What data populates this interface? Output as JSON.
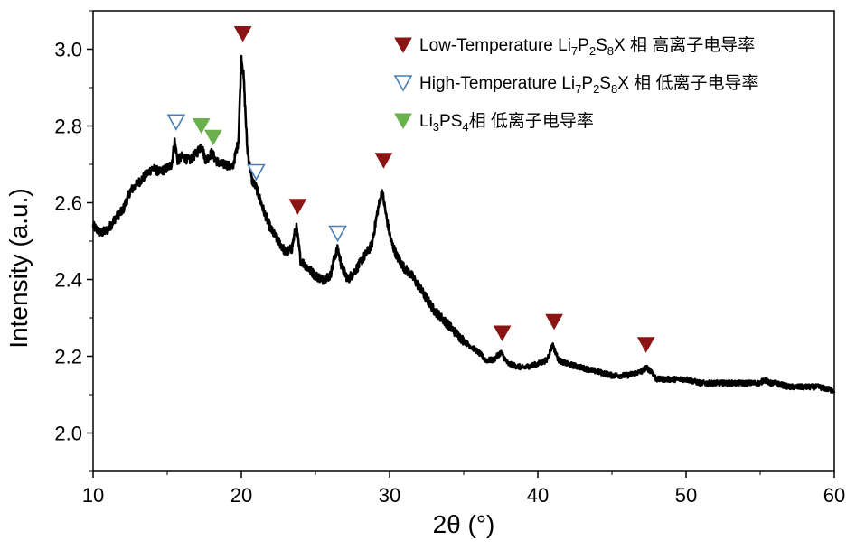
{
  "chart_data": {
    "type": "line",
    "title": "",
    "xlabel": "2θ (°)",
    "ylabel": "Intensity (a.u.)",
    "xlim": [
      10,
      60
    ],
    "ylim": [
      1.9,
      3.1
    ],
    "xticks": [
      10,
      20,
      30,
      40,
      50,
      60
    ],
    "yticks": [
      2.0,
      2.2,
      2.4,
      2.6,
      2.8,
      3.0
    ],
    "x_tick_labels": [
      "10",
      "20",
      "30",
      "40",
      "50",
      "60"
    ],
    "y_tick_labels": [
      "2.0",
      "2.2",
      "2.4",
      "2.6",
      "2.8",
      "3.0"
    ],
    "grid": false,
    "legend_position": "top-right",
    "colors": {
      "line": "#000000",
      "low_temperature": "#8b1414",
      "high_temperature": "#4a7fb5",
      "li3ps4": "#6ab04c"
    },
    "series": [
      {
        "x": [
          10,
          10.5,
          11,
          11.5,
          12,
          12.5,
          13,
          13.5,
          14,
          14.5,
          15,
          15.3,
          15.5,
          15.7,
          16,
          16.5,
          17,
          17.3,
          17.6,
          18,
          18.3,
          18.6,
          19,
          19.4,
          19.8,
          20.0,
          20.15,
          20.4,
          20.7,
          21,
          21.5,
          22,
          22.5,
          23,
          23.4,
          23.7,
          24.0,
          24.5,
          25,
          25.5,
          26,
          26.3,
          26.5,
          26.8,
          27.2,
          27.8,
          28.3,
          28.8,
          29.2,
          29.5,
          29.8,
          30.1,
          30.5,
          31,
          31.5,
          32,
          33,
          34,
          35,
          36,
          36.5,
          37,
          37.5,
          38,
          39,
          40,
          40.6,
          41,
          41.4,
          42,
          43,
          44,
          45,
          46,
          47,
          47.3,
          47.7,
          48,
          49,
          50,
          51,
          52,
          53,
          54,
          55,
          55.3,
          55.6,
          56,
          57,
          58,
          59,
          60
        ],
        "y": [
          2.54,
          2.52,
          2.53,
          2.56,
          2.58,
          2.63,
          2.65,
          2.67,
          2.69,
          2.68,
          2.69,
          2.7,
          2.76,
          2.71,
          2.72,
          2.71,
          2.73,
          2.75,
          2.71,
          2.73,
          2.71,
          2.7,
          2.7,
          2.69,
          2.76,
          2.98,
          2.93,
          2.74,
          2.66,
          2.64,
          2.58,
          2.53,
          2.5,
          2.47,
          2.48,
          2.54,
          2.45,
          2.43,
          2.41,
          2.4,
          2.41,
          2.46,
          2.48,
          2.43,
          2.4,
          2.43,
          2.46,
          2.49,
          2.58,
          2.63,
          2.56,
          2.5,
          2.46,
          2.43,
          2.41,
          2.38,
          2.32,
          2.28,
          2.24,
          2.21,
          2.19,
          2.19,
          2.21,
          2.18,
          2.17,
          2.18,
          2.19,
          2.23,
          2.19,
          2.18,
          2.17,
          2.16,
          2.15,
          2.15,
          2.16,
          2.17,
          2.16,
          2.14,
          2.14,
          2.14,
          2.13,
          2.13,
          2.13,
          2.13,
          2.13,
          2.14,
          2.13,
          2.13,
          2.12,
          2.12,
          2.12,
          2.11
        ]
      }
    ],
    "annotations": [
      {
        "type": "low_temperature",
        "x": 20.1,
        "y": 3.04
      },
      {
        "type": "low_temperature",
        "x": 23.8,
        "y": 2.59
      },
      {
        "type": "low_temperature",
        "x": 29.6,
        "y": 2.71
      },
      {
        "type": "low_temperature",
        "x": 37.6,
        "y": 2.26
      },
      {
        "type": "low_temperature",
        "x": 41.1,
        "y": 2.29
      },
      {
        "type": "low_temperature",
        "x": 47.3,
        "y": 2.23
      },
      {
        "type": "high_temperature",
        "x": 15.6,
        "y": 2.81
      },
      {
        "type": "high_temperature",
        "x": 21.0,
        "y": 2.68
      },
      {
        "type": "high_temperature",
        "x": 26.5,
        "y": 2.52
      },
      {
        "type": "li3ps4",
        "x": 17.3,
        "y": 2.8
      },
      {
        "type": "li3ps4",
        "x": 18.1,
        "y": 2.77
      }
    ],
    "legend": [
      {
        "type": "low_temperature",
        "prefix": "Low-Temperature Li",
        "sub1": "7",
        "mid1": "P",
        "sub2": "2",
        "mid2": "S",
        "sub3": "8",
        "suffix": "X 相 高离子电导率"
      },
      {
        "type": "high_temperature",
        "prefix": "High-Temperature Li",
        "sub1": "7",
        "mid1": "P",
        "sub2": "2",
        "mid2": "S",
        "sub3": "8",
        "suffix": "X 相 低离子电导率"
      },
      {
        "type": "li3ps4",
        "prefix": "Li",
        "sub1": "3",
        "mid1": "PS",
        "sub2": "4",
        "mid2": "",
        "sub3": "",
        "suffix": "相 低离子电导率"
      }
    ]
  }
}
